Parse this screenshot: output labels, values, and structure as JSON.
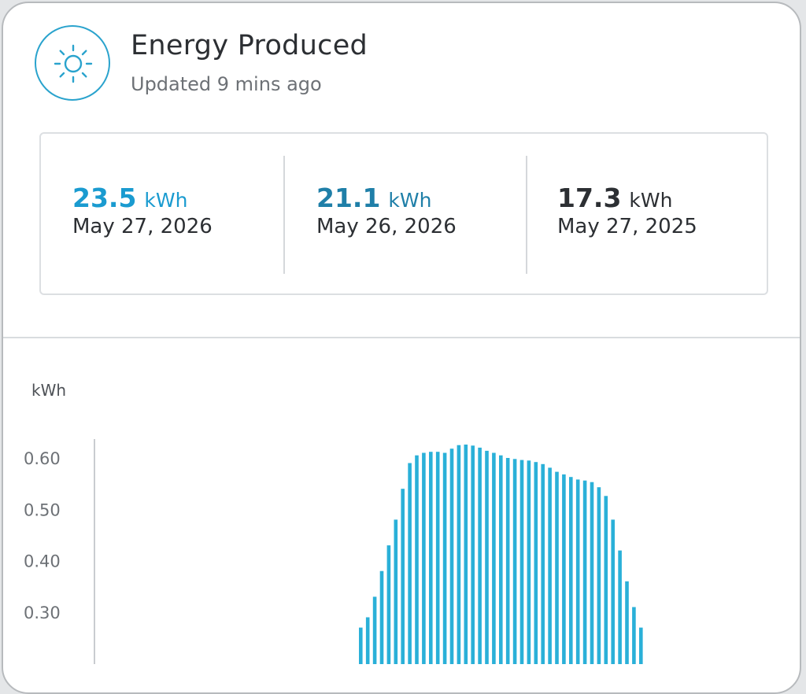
{
  "header": {
    "title": "Energy Produced",
    "updated": "Updated 9 mins ago",
    "icon": "sun-icon",
    "accent_color": "#2aa3cd"
  },
  "stats": [
    {
      "value": "23.5",
      "unit": "kWh",
      "date": "May 27, 2026",
      "color": "#1a9bd0"
    },
    {
      "value": "21.1",
      "unit": "kWh",
      "date": "May 26, 2026",
      "color": "#1f7fa8"
    },
    {
      "value": "17.3",
      "unit": "kWh",
      "date": "May 27, 2025",
      "color": "#2c2f33"
    }
  ],
  "chart_data": {
    "type": "bar",
    "ylabel": "kWh",
    "yticks": [
      "0.60",
      "0.50",
      "0.40",
      "0.30"
    ],
    "ylim": [
      0.22,
      0.65
    ],
    "bar_color": "#2ab0d8",
    "grid": false,
    "values": [
      0.27,
      0.29,
      0.33,
      0.38,
      0.43,
      0.48,
      0.54,
      0.59,
      0.605,
      0.61,
      0.612,
      0.612,
      0.61,
      0.618,
      0.625,
      0.626,
      0.624,
      0.62,
      0.614,
      0.61,
      0.605,
      0.6,
      0.598,
      0.596,
      0.595,
      0.592,
      0.588,
      0.581,
      0.573,
      0.568,
      0.563,
      0.558,
      0.556,
      0.553,
      0.543,
      0.526,
      0.48,
      0.42,
      0.36,
      0.31,
      0.27
    ]
  }
}
